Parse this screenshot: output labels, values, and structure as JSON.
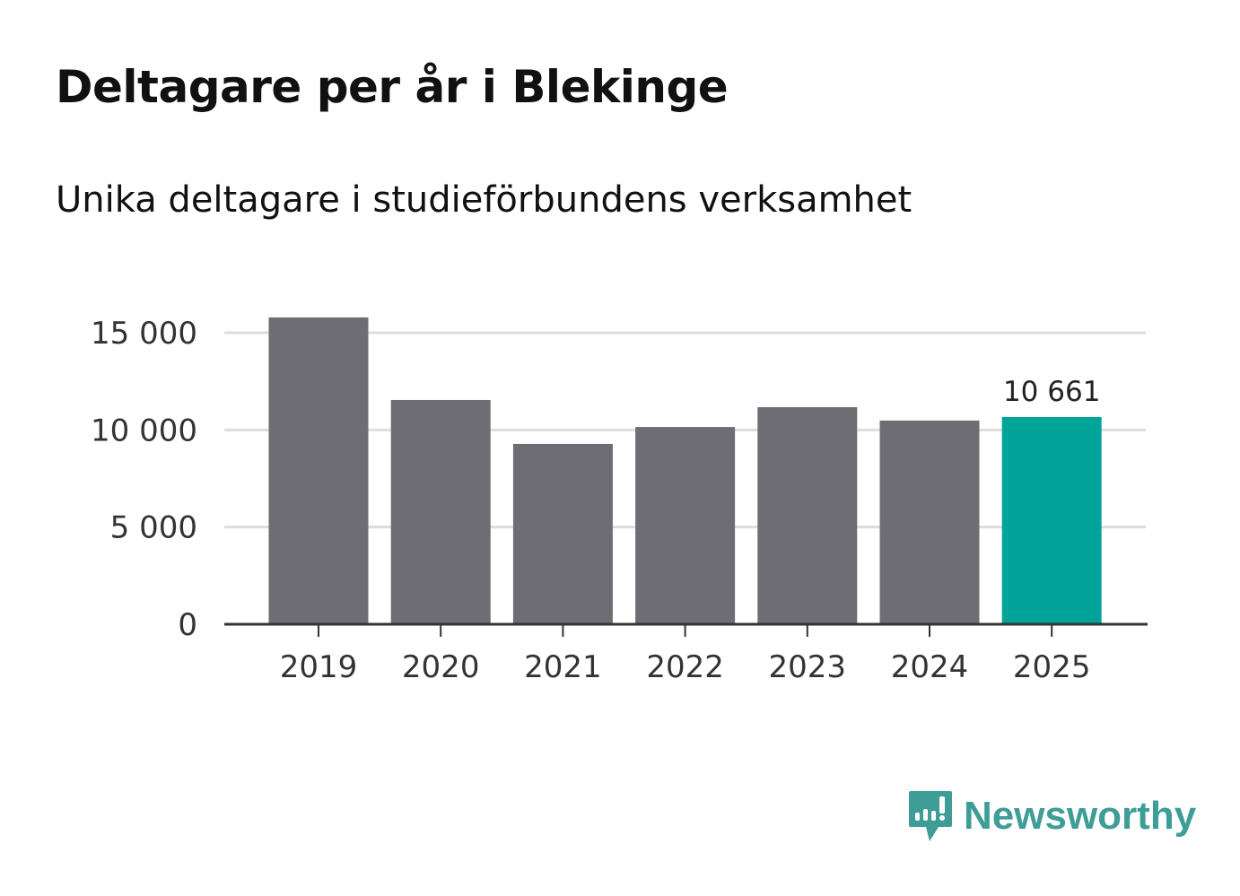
{
  "title": "Deltagare per år i Blekinge",
  "subtitle": "Unika deltagare i studieförbundens verksamhet",
  "brand": "Newsworthy",
  "colors": {
    "bar": "#6e6d73",
    "highlight": "#00a499",
    "grid": "#dddddd",
    "axis": "#333333",
    "brand": "#3e9e97"
  },
  "chart_data": {
    "type": "bar",
    "title": "Deltagare per år i Blekinge",
    "subtitle": "Unika deltagare i studieförbundens verksamhet",
    "categories": [
      "2019",
      "2020",
      "2021",
      "2022",
      "2023",
      "2024",
      "2025"
    ],
    "values": [
      15790,
      11540,
      9280,
      10150,
      11170,
      10480,
      10661
    ],
    "highlight_index": 6,
    "data_label": "10 661",
    "ylim": [
      0,
      15000
    ],
    "yticks": [
      0,
      5000,
      10000,
      15000
    ],
    "ytick_labels": [
      "0",
      "5 000",
      "10 000",
      "15 000"
    ],
    "grid": true,
    "xlabel": "",
    "ylabel": ""
  }
}
